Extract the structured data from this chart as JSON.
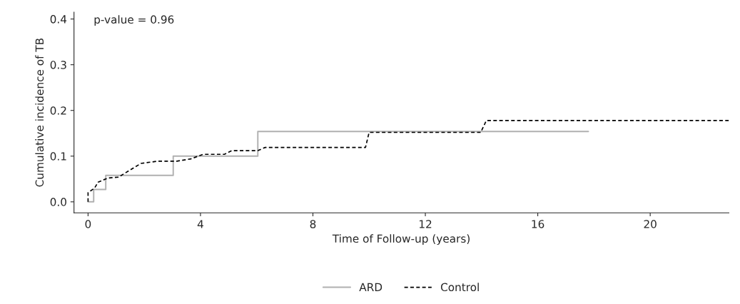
{
  "chart_data": {
    "type": "line",
    "xlabel": "Time of Follow-up (years)",
    "ylabel": "Cumulative incidence of TB",
    "annotations": [
      "p-value = 0.96"
    ],
    "xlim": [
      -0.5,
      22.8
    ],
    "xticks": [
      0,
      4,
      8,
      12,
      16,
      20
    ],
    "ylim": [
      -0.024,
      0.415
    ],
    "yticks": [
      {
        "value": 0,
        "label": "0.0"
      },
      0.1,
      0.2,
      0.3,
      0.4
    ],
    "grid": false,
    "legend": "bottom",
    "marker": "none",
    "series": [
      {
        "name": "ARD",
        "type": "step",
        "color": "#b0b0b0",
        "line_style": "solid",
        "x": [
          0,
          0.2,
          0.63,
          3.03,
          6.04,
          17.8
        ],
        "values": [
          0,
          0.027,
          0.058,
          0.1,
          0.154,
          0.154
        ]
      },
      {
        "name": "Control",
        "color": "#000000",
        "line_style": "dashed",
        "x": [
          0,
          0,
          0.23,
          0.36,
          0.7,
          1.08,
          1.88,
          2.48,
          3.16,
          3.66,
          4.09,
          4.85,
          5.11,
          6.04,
          6.3,
          9.87,
          10.0,
          13.97,
          14.17,
          22.8
        ],
        "values": [
          0,
          0.02,
          0.03,
          0.043,
          0.052,
          0.054,
          0.084,
          0.089,
          0.089,
          0.094,
          0.104,
          0.104,
          0.112,
          0.112,
          0.119,
          0.119,
          0.152,
          0.152,
          0.178,
          0.178
        ]
      }
    ]
  }
}
